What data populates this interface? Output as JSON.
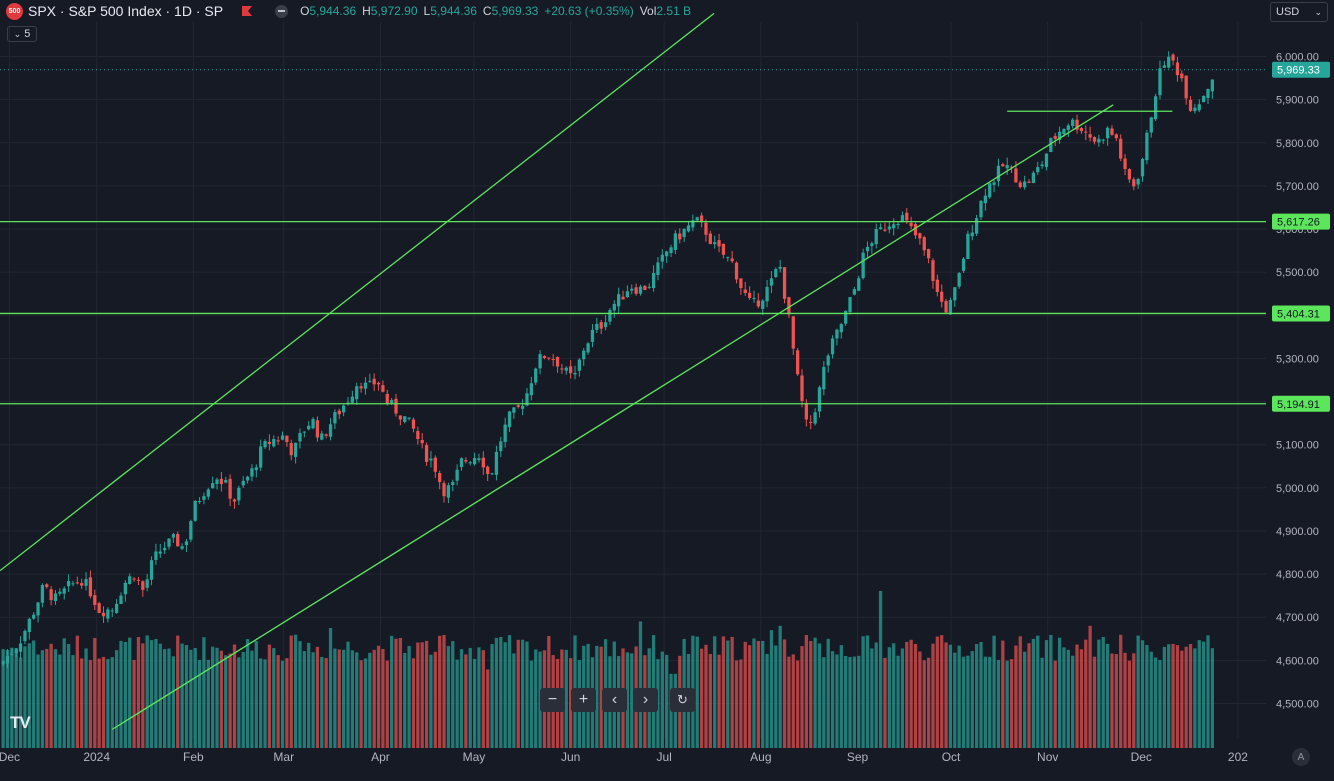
{
  "header": {
    "badge": "500",
    "title": "SPX · S&P 500 Index · 1D · SP",
    "ohlc": [
      {
        "k": "O",
        "v": "5,944.36"
      },
      {
        "k": "H",
        "v": "5,972.90"
      },
      {
        "k": "L",
        "v": "5,944.36"
      },
      {
        "k": "C",
        "v": "5,969.33"
      },
      {
        "k": "",
        "v": "+20.63 (+0.35%)"
      },
      {
        "k": "Vol",
        "v": "2.51 B"
      }
    ]
  },
  "currency": "USD",
  "indicators_collapsed_count": "5",
  "colors": {
    "background": "#161a25",
    "up": "#26a69a",
    "down": "#ef5350",
    "drawing": "#5ce65c",
    "grid": "#232733",
    "price_label": "#26a69a"
  },
  "nav_buttons": [
    "zoom-out-icon",
    "zoom-in-icon",
    "scroll-left-icon",
    "scroll-right-icon",
    "reset-icon"
  ],
  "logo": "TV",
  "auto_scale_label": "A",
  "chart_data": {
    "type": "candlestick",
    "symbol": "SPX",
    "interval": "1D",
    "y_axis": {
      "ticks": [
        4500,
        4600,
        4700,
        4800,
        4900,
        5000,
        5100,
        5200,
        5300,
        5400,
        5500,
        5600,
        5700,
        5800,
        5900,
        6000
      ],
      "tick_labels": [
        "4,500.00",
        "4,600.00",
        "4,700.00",
        "4,800.00",
        "4,900.00",
        "5,000.00",
        "5,100.00",
        "5,200.00",
        "5,300.00",
        "5,400.00",
        "5,500.00",
        "5,600.00",
        "5,700.00",
        "5,800.00",
        "5,900.00",
        "6,000.00"
      ],
      "ylim": [
        4420,
        6080
      ]
    },
    "x_axis": {
      "labels": [
        "Dec",
        "2024",
        "Feb",
        "Mar",
        "Apr",
        "May",
        "Jun",
        "Jul",
        "Aug",
        "Sep",
        "Oct",
        "Nov",
        "Dec",
        "202"
      ],
      "label_days": [
        -3,
        25,
        56,
        85,
        116,
        146,
        177,
        207,
        238,
        269,
        299,
        330,
        360,
        391
      ],
      "xlim": [
        -6,
        400
      ]
    },
    "last_price": 5969.33,
    "last_price_label": "5,969.33",
    "horizontal_levels": [
      {
        "value": 5617.26,
        "label": "5,617.26"
      },
      {
        "value": 5404.31,
        "label": "5,404.31"
      },
      {
        "value": 5194.91,
        "label": "5,194.91"
      }
    ],
    "short_level": {
      "value": 5873,
      "from_day": 317,
      "to_day": 370
    },
    "channel_lines": [
      {
        "from": {
          "day": -6,
          "price": 4808
        },
        "to": {
          "day": 223,
          "price": 6100
        }
      },
      {
        "from": {
          "day": 30,
          "price": 4440
        },
        "to": {
          "day": 351,
          "price": 5888
        }
      }
    ],
    "price_path": [
      [
        -6,
        4590
      ],
      [
        0,
        4640
      ],
      [
        4,
        4700
      ],
      [
        8,
        4770
      ],
      [
        12,
        4740
      ],
      [
        16,
        4770
      ],
      [
        20,
        4790
      ],
      [
        23,
        4760
      ],
      [
        26,
        4715
      ],
      [
        30,
        4720
      ],
      [
        34,
        4780
      ],
      [
        37,
        4800
      ],
      [
        40,
        4760
      ],
      [
        43,
        4830
      ],
      [
        46,
        4860
      ],
      [
        50,
        4880
      ],
      [
        53,
        4860
      ],
      [
        56,
        4950
      ],
      [
        59,
        4990
      ],
      [
        63,
        5030
      ],
      [
        66,
        5010
      ],
      [
        69,
        4970
      ],
      [
        72,
        5010
      ],
      [
        75,
        5040
      ],
      [
        78,
        5090
      ],
      [
        81,
        5110
      ],
      [
        85,
        5120
      ],
      [
        88,
        5080
      ],
      [
        91,
        5130
      ],
      [
        94,
        5160
      ],
      [
        97,
        5110
      ],
      [
        100,
        5150
      ],
      [
        103,
        5180
      ],
      [
        106,
        5210
      ],
      [
        109,
        5250
      ],
      [
        112,
        5230
      ],
      [
        115,
        5250
      ],
      [
        118,
        5200
      ],
      [
        121,
        5180
      ],
      [
        124,
        5160
      ],
      [
        127,
        5130
      ],
      [
        130,
        5080
      ],
      [
        133,
        5060
      ],
      [
        136,
        4995
      ],
      [
        139,
        5000
      ],
      [
        142,
        5060
      ],
      [
        145,
        5070
      ],
      [
        148,
        5080
      ],
      [
        151,
        5020
      ],
      [
        154,
        5100
      ],
      [
        157,
        5160
      ],
      [
        160,
        5180
      ],
      [
        163,
        5220
      ],
      [
        166,
        5290
      ],
      [
        169,
        5310
      ],
      [
        172,
        5300
      ],
      [
        175,
        5270
      ],
      [
        178,
        5250
      ],
      [
        181,
        5320
      ],
      [
        184,
        5360
      ],
      [
        187,
        5380
      ],
      [
        190,
        5420
      ],
      [
        193,
        5440
      ],
      [
        196,
        5470
      ],
      [
        199,
        5460
      ],
      [
        202,
        5470
      ],
      [
        205,
        5510
      ],
      [
        208,
        5550
      ],
      [
        211,
        5580
      ],
      [
        214,
        5600
      ],
      [
        217,
        5620
      ],
      [
        220,
        5600
      ],
      [
        223,
        5560
      ],
      [
        226,
        5540
      ],
      [
        229,
        5520
      ],
      [
        232,
        5460
      ],
      [
        235,
        5420
      ],
      [
        238,
        5440
      ],
      [
        241,
        5470
      ],
      [
        244,
        5520
      ],
      [
        247,
        5390
      ],
      [
        250,
        5240
      ],
      [
        253,
        5130
      ],
      [
        256,
        5200
      ],
      [
        259,
        5300
      ],
      [
        262,
        5350
      ],
      [
        265,
        5400
      ],
      [
        268,
        5460
      ],
      [
        271,
        5540
      ],
      [
        274,
        5580
      ],
      [
        277,
        5600
      ],
      [
        280,
        5620
      ],
      [
        283,
        5630
      ],
      [
        286,
        5600
      ],
      [
        289,
        5570
      ],
      [
        292,
        5520
      ],
      [
        295,
        5440
      ],
      [
        298,
        5410
      ],
      [
        301,
        5470
      ],
      [
        304,
        5570
      ],
      [
        307,
        5630
      ],
      [
        310,
        5690
      ],
      [
        313,
        5720
      ],
      [
        316,
        5750
      ],
      [
        319,
        5730
      ],
      [
        322,
        5700
      ],
      [
        325,
        5720
      ],
      [
        328,
        5750
      ],
      [
        331,
        5800
      ],
      [
        334,
        5830
      ],
      [
        337,
        5850
      ],
      [
        340,
        5840
      ],
      [
        343,
        5820
      ],
      [
        346,
        5800
      ],
      [
        349,
        5830
      ],
      [
        352,
        5810
      ],
      [
        355,
        5720
      ],
      [
        358,
        5700
      ],
      [
        361,
        5780
      ],
      [
        364,
        5900
      ],
      [
        367,
        5990
      ],
      [
        370,
        5990
      ],
      [
        373,
        5950
      ],
      [
        376,
        5880
      ],
      [
        379,
        5900
      ],
      [
        382,
        5940
      ],
      [
        384,
        5969
      ]
    ],
    "volume_axis": {
      "ylim": [
        0,
        11
      ]
    },
    "volume_spikes": [
      [
        3,
        4.8
      ],
      [
        90,
        4.9
      ],
      [
        100,
        5.5
      ],
      [
        150,
        3.6
      ],
      [
        200,
        5.8
      ],
      [
        210,
        3.4
      ],
      [
        241,
        5.4
      ],
      [
        244,
        5.6
      ],
      [
        260,
        5.0
      ],
      [
        277,
        7.2
      ],
      [
        343,
        5.6
      ],
      [
        356,
        4.0
      ]
    ]
  }
}
